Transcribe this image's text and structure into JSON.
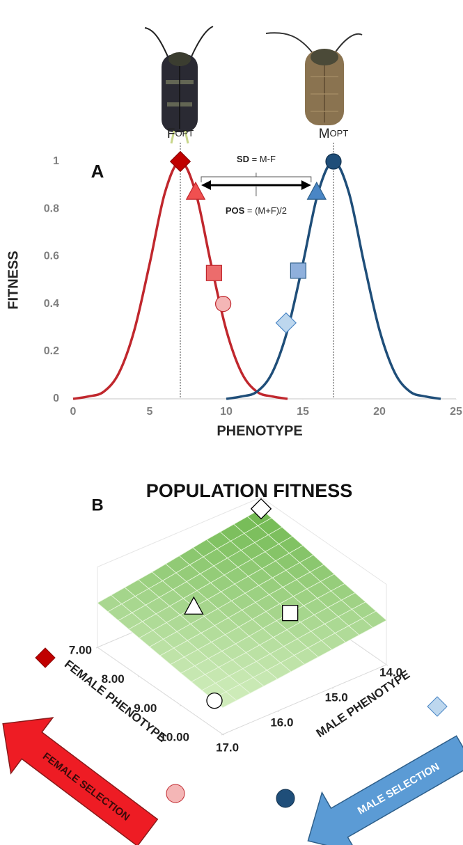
{
  "chart_data": [
    {
      "type": "line",
      "label": "A",
      "xlabel": "PHENOTYPE",
      "ylabel": "FITNESS",
      "x": [
        0,
        1,
        2,
        3,
        4,
        5,
        6,
        7,
        8,
        9,
        10,
        11,
        12,
        13,
        14,
        15,
        16,
        17,
        18,
        19,
        20,
        21,
        22,
        23,
        24
      ],
      "series": [
        {
          "color": "#c0272d",
          "values": [
            0,
            0.01,
            0.03,
            0.11,
            0.29,
            0.57,
            0.87,
            1,
            0.87,
            0.57,
            0.29,
            0.11,
            0.03,
            0.01,
            0,
            null,
            null,
            null,
            null,
            null,
            null,
            null,
            null,
            null,
            null
          ]
        },
        {
          "color": "#1f4e79",
          "values": [
            null,
            null,
            null,
            null,
            null,
            null,
            null,
            null,
            null,
            null,
            0,
            0.01,
            0.03,
            0.11,
            0.29,
            0.57,
            0.87,
            1,
            0.87,
            0.57,
            0.29,
            0.11,
            0.03,
            0.01,
            0
          ]
        }
      ],
      "xlim": [
        0,
        25
      ],
      "xticks": [
        0,
        5,
        10,
        15,
        20,
        25
      ],
      "ylim": [
        0,
        1
      ],
      "yticks": [
        0,
        0.2,
        0.4,
        0.6,
        0.8,
        1
      ],
      "optima": [
        {
          "x": 7,
          "letter": "F",
          "sub": "OPT"
        },
        {
          "x": 17,
          "letter": "M",
          "sub": "OPT"
        }
      ],
      "markers": [
        {
          "shape": "diamond",
          "x": 7,
          "y": 1,
          "color": "#c00000",
          "edgecolor": "#8b0000"
        },
        {
          "shape": "triangle",
          "x": 8,
          "y": 0.87,
          "color": "#f05050",
          "edgecolor": "#c0272d"
        },
        {
          "shape": "square",
          "x": 9.2,
          "y": 0.53,
          "color": "#ec6c6c",
          "edgecolor": "#c0272d"
        },
        {
          "shape": "circle",
          "x": 9.8,
          "y": 0.4,
          "color": "#f4b6b6",
          "edgecolor": "#c0272d"
        },
        {
          "shape": "diamond",
          "x": 13.9,
          "y": 0.32,
          "color": "#bdd7ee",
          "edgecolor": "#4a86c5"
        },
        {
          "shape": "square",
          "x": 14.7,
          "y": 0.54,
          "color": "#8fb0dc",
          "edgecolor": "#2e5f8a"
        },
        {
          "shape": "triangle",
          "x": 15.9,
          "y": 0.87,
          "color": "#4a86c5",
          "edgecolor": "#2e5f8a"
        },
        {
          "shape": "circle",
          "x": 17,
          "y": 1,
          "color": "#1f4e79",
          "edgecolor": "#12314d"
        }
      ],
      "sd_label": {
        "bold": "SD",
        "rest": " = M-F"
      },
      "pos_label": {
        "bold": "POS",
        "rest": " = (M+F)/2"
      }
    },
    {
      "type": "surface",
      "label": "B",
      "title": "POPULATION FITNESS",
      "xlabel": "FEMALE PHENOTYPE",
      "ylabel": "MALE PHENOTYPE",
      "xlim": [
        7,
        10
      ],
      "xticks": [
        {
          "value": 7,
          "label": "7.00"
        },
        {
          "value": 8,
          "label": "8.00"
        },
        {
          "value": 9,
          "label": "9.00"
        },
        {
          "value": 10,
          "label": "10.00"
        }
      ],
      "ylim": [
        14,
        17
      ],
      "yticks": [
        {
          "value": 14,
          "label": "14.0"
        },
        {
          "value": 15,
          "label": "15.0"
        },
        {
          "value": 16,
          "label": "16.0"
        },
        {
          "value": 17,
          "label": "17.0"
        }
      ],
      "z": [
        [
          0.9,
          0.8,
          0.68,
          0.58
        ],
        [
          0.8,
          0.7,
          0.6,
          0.5
        ],
        [
          0.68,
          0.6,
          0.5,
          0.42
        ],
        [
          0.58,
          0.5,
          0.42,
          0.35
        ]
      ],
      "color_low": "#d3eebf",
      "color_high": "#6fb84f",
      "points": [
        {
          "shape": "diamond",
          "x": 7,
          "y": 14
        },
        {
          "shape": "triangle",
          "x": 8,
          "y": 16
        },
        {
          "shape": "square",
          "x": 9,
          "y": 15
        },
        {
          "shape": "circle",
          "x": 9.8,
          "y": 17
        }
      ],
      "arrows": [
        {
          "text": "FEMALE SELECTION",
          "color": "#ee1c24"
        },
        {
          "text": "MALE SELECTION",
          "color": "#5b9bd5"
        }
      ]
    }
  ]
}
